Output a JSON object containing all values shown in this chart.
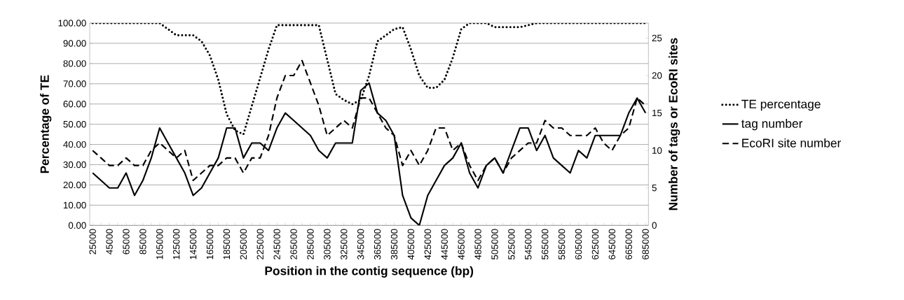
{
  "chart_data": {
    "type": "line",
    "xlabel": "Position in the contig sequence (bp)",
    "ylabel": "Percentage of TE",
    "y2label": "Number of tags or EcoRI sites",
    "categories": [
      "25000",
      null,
      "45000",
      null,
      "65000",
      null,
      "85000",
      null,
      "105000",
      null,
      "125000",
      null,
      "145000",
      null,
      "165000",
      null,
      "185000",
      null,
      "205000",
      null,
      "225000",
      null,
      "245000",
      null,
      "265000",
      null,
      "285000",
      null,
      "305000",
      null,
      "325000",
      null,
      "345000",
      null,
      "365000",
      null,
      "385000",
      null,
      "405000",
      null,
      "425000",
      null,
      "445000",
      null,
      "465000",
      null,
      "485000",
      null,
      "505000",
      null,
      "525000",
      null,
      "545000",
      null,
      "565000",
      null,
      "585000",
      null,
      "605000",
      null,
      "625000",
      null,
      "645000",
      null,
      "665000",
      null,
      "685000"
    ],
    "series": [
      {
        "name": "TE percentage",
        "color": "#000000",
        "line_style": "dotted",
        "values": [
          100,
          100,
          100,
          100,
          100,
          100,
          100,
          100,
          100,
          97,
          94,
          94,
          94,
          91,
          84,
          72,
          55,
          47,
          45,
          59,
          73,
          87,
          99,
          99,
          99,
          99,
          99,
          99,
          82,
          65,
          62,
          60,
          62,
          74,
          91,
          94,
          97,
          98,
          87,
          74,
          68,
          68,
          72,
          83,
          97,
          100,
          100,
          100,
          98,
          98,
          98,
          98,
          99,
          100,
          100,
          100,
          100,
          100,
          100,
          100,
          100,
          100,
          100,
          100,
          100,
          100,
          100
        ]
      },
      {
        "name": "tag number",
        "color": "#000000",
        "line_style": "solid",
        "axis": "y2",
        "values": [
          7,
          6,
          5,
          5,
          7,
          4,
          6,
          9,
          13,
          11,
          9,
          7,
          4,
          5,
          7,
          9,
          13,
          13,
          9,
          11,
          11,
          10,
          13,
          15,
          14,
          13,
          12,
          10,
          9,
          11,
          11,
          11,
          18,
          19,
          15,
          14,
          12,
          4,
          1,
          0,
          4,
          6,
          8,
          9,
          11,
          7,
          5,
          8,
          9,
          7,
          10,
          13,
          13,
          10,
          12,
          9,
          8,
          7,
          10,
          9,
          12,
          12,
          12,
          12,
          15,
          17,
          15
        ]
      },
      {
        "name": "EcoRI site number",
        "color": "#000000",
        "line_style": "dashed",
        "axis": "y2",
        "values": [
          10,
          9,
          8,
          8,
          9,
          8,
          8,
          10,
          11,
          10,
          9,
          10,
          6,
          7,
          8,
          8,
          9,
          9,
          7,
          9,
          9,
          12,
          17,
          20,
          20,
          22,
          19,
          16,
          12,
          13,
          14,
          13,
          17,
          17,
          15,
          13,
          12,
          8,
          10,
          8,
          10,
          13,
          13,
          10,
          11,
          8,
          6,
          8,
          9,
          7,
          9,
          10,
          11,
          11,
          14,
          13,
          13,
          12,
          12,
          12,
          13,
          11,
          10,
          12,
          13,
          17,
          16
        ]
      }
    ],
    "ylim": [
      0,
      100
    ],
    "yticks": [
      {
        "value": 0,
        "label": "0.00"
      },
      {
        "value": 10,
        "label": "10.00"
      },
      {
        "value": 20,
        "label": "20.00"
      },
      {
        "value": 30,
        "label": "30.00"
      },
      {
        "value": 40,
        "label": "40.00"
      },
      {
        "value": 50,
        "label": "50.00"
      },
      {
        "value": 60,
        "label": "60.00"
      },
      {
        "value": 70,
        "label": "70.00"
      },
      {
        "value": 80,
        "label": "80.00"
      },
      {
        "value": 90,
        "label": "90.00"
      },
      {
        "value": 100,
        "label": "100.00"
      }
    ],
    "y2lim": [
      0,
      27
    ],
    "y2ticks": [
      0,
      5,
      10,
      15,
      20,
      25
    ],
    "grid": "y",
    "legend": "right"
  }
}
